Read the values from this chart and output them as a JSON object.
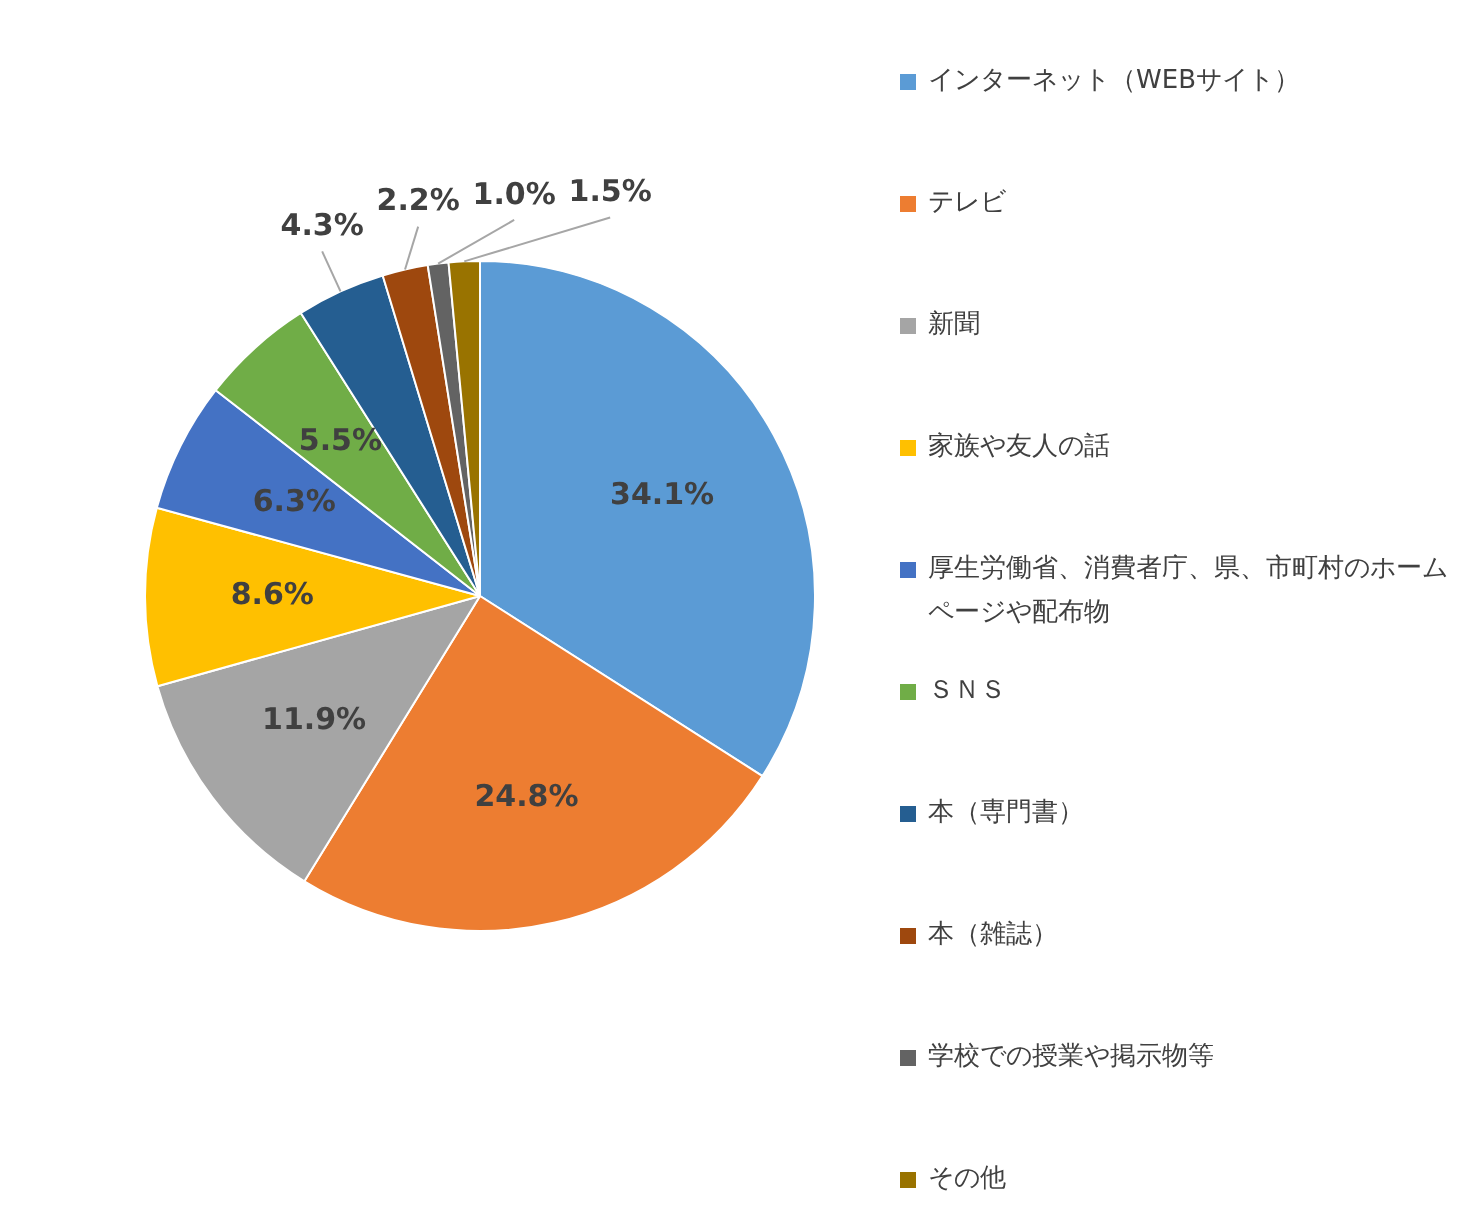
{
  "chart_data": {
    "type": "pie",
    "categories": [
      "インターネット（WEBサイト）",
      "テレビ",
      "新聞",
      "家族や友人の話",
      "厚生労働省、消費者庁、県、市町村のホームページや配布物",
      "ＳＮＳ",
      "本（専門書）",
      "本（雑誌）",
      "学校での授業や掲示物等",
      "その他"
    ],
    "values": [
      34.1,
      24.8,
      11.9,
      8.6,
      6.3,
      5.5,
      4.3,
      2.2,
      1.0,
      1.5
    ],
    "colors": [
      "#5b9bd5",
      "#ed7d31",
      "#a5a5a5",
      "#ffc000",
      "#4472c4",
      "#70ad47",
      "#255e91",
      "#9e480e",
      "#636363",
      "#997300"
    ],
    "value_labels": [
      "34.1%",
      "24.8%",
      "11.9%",
      "8.6%",
      "6.3%",
      "5.5%",
      "4.3%",
      "2.2%",
      "1.0%",
      "1.5%"
    ],
    "legend": "right"
  }
}
